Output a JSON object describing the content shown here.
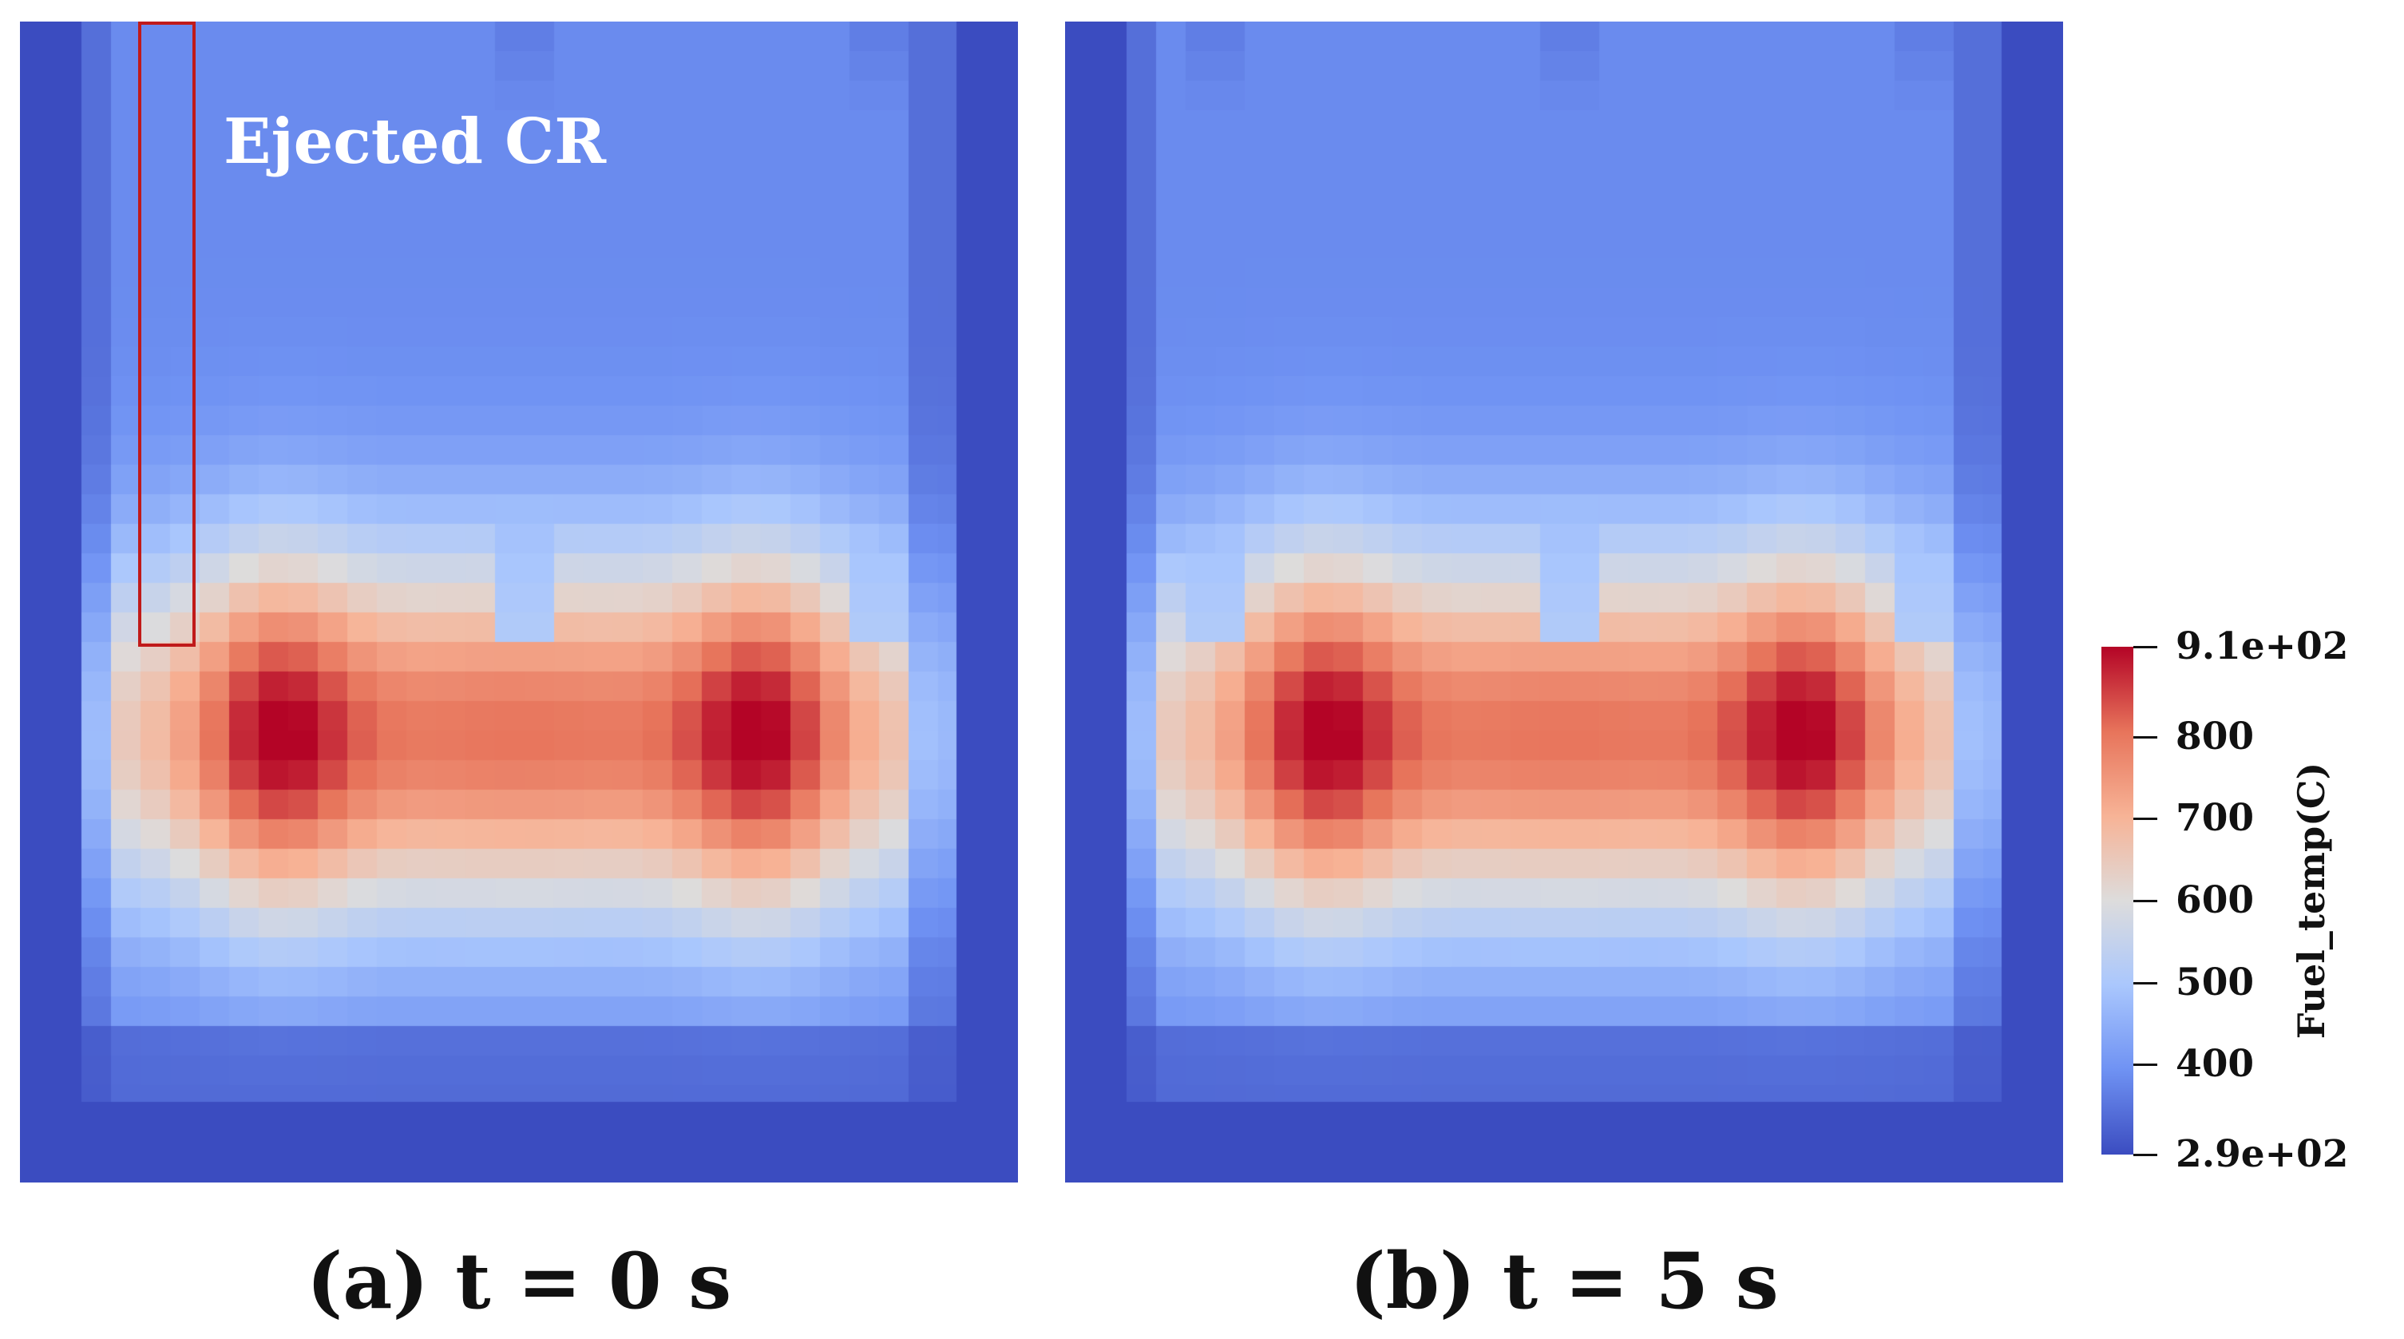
{
  "chart_data": {
    "type": "heatmap",
    "panels": [
      {
        "caption": "(a) t = 0 s",
        "annotation": "Ejected CR",
        "hot_spots_x": [
          0.22,
          0.78
        ],
        "control_rod_withdrawn": true
      },
      {
        "caption": "(b) t = 5 s",
        "annotation": "",
        "hot_spots_x": [
          0.22,
          0.78
        ],
        "control_rod_withdrawn": false
      }
    ],
    "colorbar": {
      "title": "Fuel_temp(C)",
      "min": 290,
      "max": 910,
      "min_label": "2.9e+02",
      "max_label": "9.1e+02",
      "ticks": [
        {
          "value": 910,
          "label": "9.1e+02"
        },
        {
          "value": 800,
          "label": "800"
        },
        {
          "value": 700,
          "label": "700"
        },
        {
          "value": 600,
          "label": "600"
        },
        {
          "value": 500,
          "label": "500"
        },
        {
          "value": 400,
          "label": "400"
        },
        {
          "value": 290,
          "label": "2.9e+02"
        }
      ],
      "colormap": [
        "#3b4cc0",
        "#6f92f3",
        "#aac7fd",
        "#dddcdc",
        "#f7b396",
        "#e7745b",
        "#b40426"
      ]
    }
  }
}
